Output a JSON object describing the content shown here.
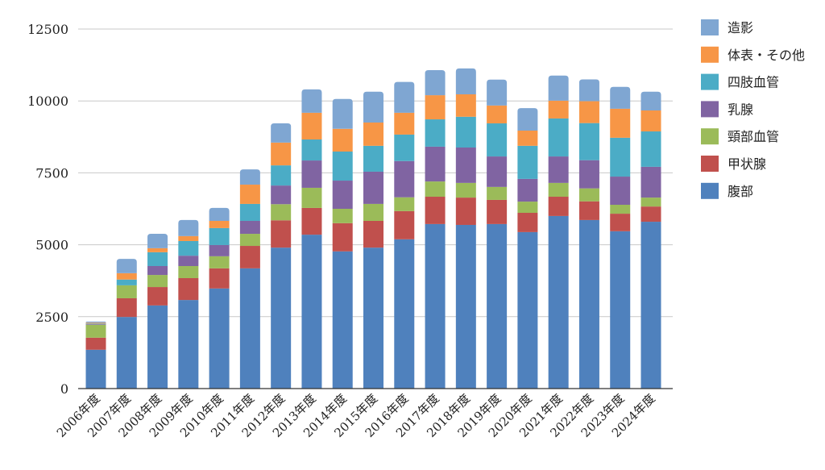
{
  "chart_data": {
    "type": "bar",
    "stacked": true,
    "title": "",
    "xlabel": "",
    "ylabel": "",
    "ylim": [
      0,
      12500
    ],
    "yticks": [
      0,
      2500,
      5000,
      7500,
      10000,
      12500
    ],
    "grid": true,
    "legend_position": "right",
    "categories": [
      "2006年度",
      "2007年度",
      "2008年度",
      "2009年度",
      "2010年度",
      "2011年度",
      "2012年度",
      "2013年度",
      "2014年度",
      "2015年度",
      "2016年度",
      "2017年度",
      "2018年度",
      "2019年度",
      "2020年度",
      "2021年度",
      "2022年度",
      "2023年度",
      "2024年度"
    ],
    "series": [
      {
        "name": "腹部",
        "color": "#4F81BD",
        "values": [
          1350,
          2490,
          2890,
          3080,
          3480,
          4180,
          4900,
          5350,
          4770,
          4900,
          5190,
          5720,
          5690,
          5720,
          5440,
          6000,
          5860,
          5470,
          5800
        ]
      },
      {
        "name": "甲状腺",
        "color": "#C0504D",
        "values": [
          420,
          650,
          640,
          760,
          700,
          780,
          950,
          930,
          980,
          930,
          980,
          950,
          950,
          840,
          670,
          670,
          650,
          610,
          530
        ]
      },
      {
        "name": "頸部血管",
        "color": "#9BBB59",
        "values": [
          450,
          450,
          420,
          420,
          420,
          420,
          560,
          700,
          500,
          590,
          480,
          530,
          510,
          450,
          390,
          480,
          450,
          310,
          310
        ]
      },
      {
        "name": "乳腺",
        "color": "#8064A2",
        "values": [
          20,
          0,
          310,
          360,
          390,
          450,
          650,
          950,
          980,
          1120,
          1260,
          1210,
          1230,
          1060,
          790,
          920,
          980,
          980,
          1070
        ]
      },
      {
        "name": "四肢血管",
        "color": "#4BACC6",
        "values": [
          20,
          200,
          480,
          510,
          590,
          590,
          700,
          730,
          1010,
          900,
          920,
          950,
          1070,
          1150,
          1150,
          1320,
          1290,
          1350,
          1230
        ]
      },
      {
        "name": "体表・その他",
        "color": "#F79646",
        "values": [
          30,
          220,
          140,
          170,
          250,
          670,
          790,
          930,
          790,
          810,
          760,
          840,
          780,
          620,
          530,
          620,
          760,
          1010,
          730
        ]
      },
      {
        "name": "造影",
        "color": "#7FA6D2",
        "values": [
          40,
          500,
          500,
          560,
          450,
          530,
          670,
          810,
          1040,
          1070,
          1070,
          870,
          900,
          900,
          780,
          870,
          760,
          760,
          650
        ]
      }
    ]
  }
}
